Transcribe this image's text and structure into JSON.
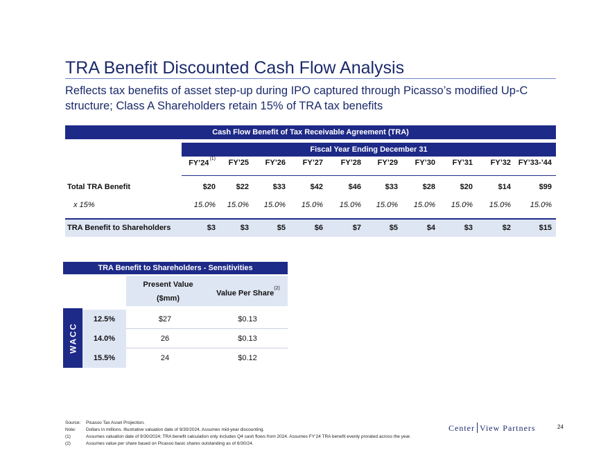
{
  "title": "TRA Benefit Discounted Cash Flow Analysis",
  "subtitle": "Reflects tax benefits of asset step-up during IPO captured through Picasso’s modified Up-C structure; Class A Shareholders retain 15% of TRA tax benefits",
  "main_table": {
    "banner": "Cash Flow Benefit of Tax Receivable Agreement (TRA)",
    "subheader": "Fiscal Year Ending December 31",
    "columns": [
      "FY’24",
      "FY’25",
      "FY’26",
      "FY’27",
      "FY’28",
      "FY’29",
      "FY’30",
      "FY’31",
      "FY’32",
      "FY’33-’44"
    ],
    "first_col_note": "(1)",
    "rows": [
      {
        "label": "Total TRA Benefit",
        "values": [
          "$20",
          "$22",
          "$33",
          "$42",
          "$46",
          "$33",
          "$28",
          "$20",
          "$14",
          "$99"
        ]
      },
      {
        "label": "x 15%",
        "values": [
          "15.0%",
          "15.0%",
          "15.0%",
          "15.0%",
          "15.0%",
          "15.0%",
          "15.0%",
          "15.0%",
          "15.0%",
          "15.0%"
        ]
      },
      {
        "label": "TRA Benefit to Shareholders",
        "values": [
          "$3",
          "$3",
          "$5",
          "$6",
          "$7",
          "$5",
          "$4",
          "$3",
          "$2",
          "$15"
        ]
      }
    ]
  },
  "sensitivity": {
    "banner": "TRA Benefit to Shareholders - Sensitivities",
    "col1_line1": "Present Value",
    "col1_line2": "($mm)",
    "col2": "Value Per Share",
    "col2_note": "(2)",
    "side_label": "WACC",
    "rows": [
      {
        "rate": "12.5%",
        "pv": "$27",
        "vps": "$0.13"
      },
      {
        "rate": "14.0%",
        "pv": "26",
        "vps": "$0.13"
      },
      {
        "rate": "15.5%",
        "pv": "24",
        "vps": "$0.12"
      }
    ]
  },
  "footnotes": [
    {
      "key": "Source:",
      "text": "Picasso Tax Asset Projection."
    },
    {
      "key": "Note:",
      "text": "Dollars in millions. Illustrative valuation date of 9/30/2024. Assumes mid-year discounting."
    },
    {
      "key": "(1)",
      "text": "Assumes valuation date of 9/30/2024; TRA benefit calculation only includes Q4 cash flows from 2024. Assumes FY’24 TRA benefit evenly prorated across the year."
    },
    {
      "key": "(2)",
      "text": "Assumes value per share based on Picasso basic shares outstanding as of 6/30/24."
    }
  ],
  "logo": {
    "left": "Center",
    "right": "View Partners"
  },
  "page_number": "24"
}
